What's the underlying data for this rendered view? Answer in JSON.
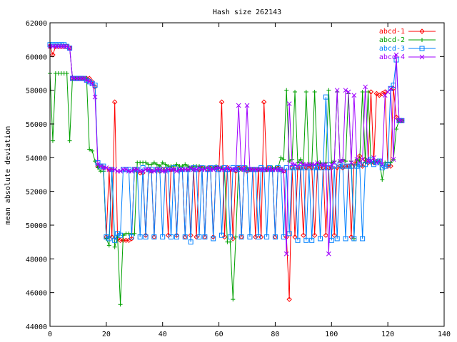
{
  "chart_data": {
    "type": "line",
    "title": "Hash size 262143",
    "xlabel": "",
    "ylabel": "mean absolute deviation",
    "xlim": [
      0,
      140
    ],
    "ylim": [
      44000,
      62000
    ],
    "xticks": [
      0,
      20,
      40,
      60,
      80,
      100,
      120,
      140
    ],
    "yticks": [
      44000,
      46000,
      48000,
      50000,
      52000,
      54000,
      56000,
      58000,
      60000,
      62000
    ],
    "grid": false,
    "legend_position": "top-right",
    "series": [
      {
        "name": "abcd-1",
        "color": "#ff0000",
        "marker": "diamond",
        "x": [
          0,
          1,
          2,
          3,
          4,
          5,
          6,
          7,
          8,
          9,
          10,
          11,
          12,
          13,
          14,
          15,
          16,
          17,
          18,
          19,
          20,
          21,
          22,
          23,
          24,
          25,
          26,
          27,
          28,
          29,
          30,
          31,
          32,
          33,
          34,
          35,
          36,
          37,
          38,
          39,
          40,
          41,
          42,
          43,
          44,
          45,
          46,
          47,
          48,
          49,
          50,
          51,
          52,
          53,
          54,
          55,
          56,
          57,
          58,
          59,
          60,
          61,
          62,
          63,
          64,
          65,
          66,
          67,
          68,
          69,
          70,
          71,
          72,
          73,
          74,
          75,
          76,
          77,
          78,
          79,
          80,
          81,
          82,
          83,
          84,
          85,
          86,
          87,
          88,
          89,
          90,
          91,
          92,
          93,
          94,
          95,
          96,
          97,
          98,
          99,
          100,
          101,
          102,
          103,
          104,
          105,
          106,
          107,
          108,
          109,
          110,
          111,
          112,
          113,
          114,
          115,
          116,
          117,
          118,
          119,
          120,
          121,
          122,
          123,
          124,
          125
        ],
        "y": [
          60600,
          60100,
          60600,
          60600,
          60600,
          60600,
          60600,
          60500,
          58700,
          58700,
          58700,
          58700,
          58700,
          58700,
          58700,
          58500,
          58200,
          53500,
          53500,
          53400,
          49300,
          53300,
          49300,
          57300,
          49200,
          49100,
          49100,
          49100,
          49100,
          49200,
          53300,
          53200,
          53100,
          53100,
          49400,
          53300,
          53200,
          49300,
          53300,
          53200,
          53300,
          53300,
          49400,
          53300,
          53300,
          49400,
          53300,
          53300,
          49300,
          53300,
          49400,
          53300,
          49300,
          53300,
          53400,
          49300,
          53300,
          53400,
          49300,
          53400,
          53300,
          57300,
          49300,
          53400,
          53300,
          49200,
          53200,
          53400,
          49300,
          53400,
          53200,
          53300,
          53300,
          49300,
          53300,
          49300,
          57300,
          53300,
          53400,
          53300,
          49300,
          53400,
          53300,
          53200,
          49300,
          45600,
          53400,
          49300,
          53400,
          53400,
          49400,
          53400,
          53500,
          53400,
          49400,
          53400,
          53400,
          53400,
          49400,
          53400,
          53400,
          49400,
          53400,
          53500,
          53400,
          53500,
          53500,
          49300,
          53600,
          53800,
          54100,
          53500,
          53900,
          53700,
          57900,
          53700,
          57800,
          57700,
          57800,
          57900,
          53500,
          53500,
          58100,
          56400,
          56200,
          56200
        ]
      },
      {
        "name": "abcd-2",
        "color": "#00a000",
        "marker": "plus",
        "x": [
          0,
          1,
          2,
          3,
          4,
          5,
          6,
          7,
          8,
          9,
          10,
          11,
          12,
          13,
          14,
          15,
          16,
          17,
          18,
          19,
          20,
          21,
          22,
          23,
          24,
          25,
          26,
          27,
          28,
          29,
          30,
          31,
          32,
          33,
          34,
          35,
          36,
          37,
          38,
          39,
          40,
          41,
          42,
          43,
          44,
          45,
          46,
          47,
          48,
          49,
          50,
          51,
          52,
          53,
          54,
          55,
          56,
          57,
          58,
          59,
          60,
          61,
          62,
          63,
          64,
          65,
          66,
          67,
          68,
          69,
          70,
          71,
          72,
          73,
          74,
          75,
          76,
          77,
          78,
          79,
          80,
          81,
          82,
          83,
          84,
          85,
          86,
          87,
          88,
          89,
          90,
          91,
          92,
          93,
          94,
          95,
          96,
          97,
          98,
          99,
          100,
          101,
          102,
          103,
          104,
          105,
          106,
          107,
          108,
          109,
          110,
          111,
          112,
          113,
          114,
          115,
          116,
          117,
          118,
          119,
          120,
          121,
          122,
          123,
          124,
          125
        ],
        "y": [
          59000,
          55000,
          59000,
          59000,
          59000,
          59000,
          59000,
          55000,
          58800,
          58700,
          58700,
          58700,
          58700,
          58700,
          54500,
          54400,
          53800,
          53400,
          53200,
          53200,
          49200,
          48800,
          53300,
          48700,
          49300,
          45300,
          49400,
          49500,
          49500,
          49500,
          49500,
          53700,
          53700,
          53700,
          53700,
          53600,
          53600,
          53700,
          53600,
          53500,
          53700,
          53600,
          53500,
          53500,
          53500,
          53600,
          53500,
          53500,
          53600,
          53500,
          53400,
          53500,
          53500,
          53500,
          53400,
          53400,
          53400,
          53400,
          53400,
          53500,
          53400,
          53400,
          53300,
          49000,
          49000,
          45600,
          49300,
          53400,
          53300,
          53300,
          53400,
          53300,
          53300,
          53300,
          53300,
          53300,
          53300,
          53300,
          53300,
          53400,
          53400,
          53400,
          54000,
          53900,
          58000,
          53800,
          53900,
          57900,
          53700,
          53900,
          53600,
          57900,
          53600,
          53600,
          57900,
          53600,
          53700,
          53600,
          53700,
          58000,
          53700,
          53800,
          57900,
          53800,
          53900,
          53800,
          57800,
          53800,
          49200,
          53900,
          53800,
          57900,
          53700,
          57900,
          53700,
          53700,
          53800,
          53800,
          52700,
          53700,
          53700,
          53700,
          53900,
          55700,
          56200,
          56200
        ]
      },
      {
        "name": "abcd-3",
        "color": "#0080ff",
        "marker": "square",
        "x": [
          0,
          1,
          2,
          3,
          4,
          5,
          6,
          7,
          8,
          9,
          10,
          11,
          12,
          13,
          14,
          15,
          16,
          17,
          18,
          19,
          20,
          21,
          22,
          23,
          24,
          25,
          26,
          27,
          28,
          29,
          30,
          31,
          32,
          33,
          34,
          35,
          36,
          37,
          38,
          39,
          40,
          41,
          42,
          43,
          44,
          45,
          46,
          47,
          48,
          49,
          50,
          51,
          52,
          53,
          54,
          55,
          56,
          57,
          58,
          59,
          60,
          61,
          62,
          63,
          64,
          65,
          66,
          67,
          68,
          69,
          70,
          71,
          72,
          73,
          74,
          75,
          76,
          77,
          78,
          79,
          80,
          81,
          82,
          83,
          84,
          85,
          86,
          87,
          88,
          89,
          90,
          91,
          92,
          93,
          94,
          95,
          96,
          97,
          98,
          99,
          100,
          101,
          102,
          103,
          104,
          105,
          106,
          107,
          108,
          109,
          110,
          111,
          112,
          113,
          114,
          115,
          116,
          117,
          118,
          119,
          120,
          121,
          122,
          123,
          124,
          125
        ],
        "y": [
          60700,
          60700,
          60700,
          60700,
          60700,
          60700,
          60600,
          60500,
          58700,
          58700,
          58700,
          58700,
          58700,
          58600,
          58500,
          58400,
          58300,
          53700,
          53500,
          53500,
          49300,
          49200,
          53300,
          49100,
          49500,
          49400,
          53300,
          53300,
          53300,
          49300,
          53300,
          53300,
          49300,
          53400,
          49300,
          53300,
          53300,
          49300,
          53300,
          53300,
          49300,
          53300,
          53300,
          49300,
          53400,
          49300,
          53300,
          53300,
          49300,
          53300,
          49000,
          53400,
          53300,
          49300,
          53400,
          49300,
          53300,
          53400,
          49200,
          53400,
          53300,
          49400,
          53400,
          53300,
          49300,
          53400,
          53300,
          53400,
          49300,
          53400,
          53300,
          49300,
          53300,
          53300,
          49300,
          53400,
          53300,
          49300,
          53400,
          53300,
          49300,
          53400,
          53300,
          49300,
          53400,
          49500,
          53400,
          53400,
          49100,
          53400,
          53400,
          49100,
          53400,
          49100,
          53400,
          53400,
          49200,
          53400,
          57600,
          53400,
          49100,
          53500,
          49200,
          53600,
          53500,
          49200,
          53500,
          53500,
          49200,
          53500,
          53600,
          49200,
          53600,
          53800,
          53900,
          53600,
          53700,
          53800,
          53400,
          53500,
          53600,
          58100,
          58300,
          59800,
          56200,
          56200
        ]
      },
      {
        "name": "abcd-4",
        "color": "#a000ff",
        "marker": "x",
        "x": [
          0,
          1,
          2,
          3,
          4,
          5,
          6,
          7,
          8,
          9,
          10,
          11,
          12,
          13,
          14,
          15,
          16,
          17,
          18,
          19,
          20,
          21,
          22,
          23,
          24,
          25,
          26,
          27,
          28,
          29,
          30,
          31,
          32,
          33,
          34,
          35,
          36,
          37,
          38,
          39,
          40,
          41,
          42,
          43,
          44,
          45,
          46,
          47,
          48,
          49,
          50,
          51,
          52,
          53,
          54,
          55,
          56,
          57,
          58,
          59,
          60,
          61,
          62,
          63,
          64,
          65,
          66,
          67,
          68,
          69,
          70,
          71,
          72,
          73,
          74,
          75,
          76,
          77,
          78,
          79,
          80,
          81,
          82,
          83,
          84,
          85,
          86,
          87,
          88,
          89,
          90,
          91,
          92,
          93,
          94,
          95,
          96,
          97,
          98,
          99,
          100,
          101,
          102,
          103,
          104,
          105,
          106,
          107,
          108,
          109,
          110,
          111,
          112,
          113,
          114,
          115,
          116,
          117,
          118,
          119,
          120,
          121,
          122,
          123,
          124,
          125
        ],
        "y": [
          60600,
          60600,
          60600,
          60600,
          60600,
          60600,
          60600,
          60500,
          58700,
          58700,
          58700,
          58700,
          58700,
          58600,
          58500,
          58400,
          57600,
          53600,
          53500,
          53400,
          53400,
          53300,
          53300,
          53300,
          53200,
          53200,
          53300,
          53300,
          53200,
          53200,
          53300,
          53300,
          53200,
          53200,
          53300,
          53300,
          53200,
          53200,
          53300,
          53300,
          53200,
          53200,
          53300,
          53300,
          53300,
          53200,
          53300,
          53300,
          53300,
          53300,
          53400,
          53300,
          53300,
          53400,
          53300,
          53300,
          53400,
          53300,
          53300,
          53400,
          53400,
          53300,
          53300,
          53400,
          53300,
          53300,
          53300,
          57100,
          53300,
          53300,
          57100,
          53300,
          53300,
          53300,
          53300,
          53300,
          53300,
          53300,
          53300,
          53300,
          53300,
          53300,
          53300,
          53200,
          48300,
          57200,
          53600,
          53600,
          53500,
          53700,
          53600,
          53600,
          53600,
          53600,
          53600,
          53700,
          53600,
          53600,
          53600,
          48300,
          53600,
          53700,
          58000,
          53800,
          53800,
          58000,
          57900,
          53700,
          57700,
          53900,
          53700,
          53900,
          58200,
          53800,
          53800,
          54000,
          53700,
          53800,
          53600,
          57700,
          57900,
          58100,
          53900,
          60100,
          56200,
          56200
        ]
      }
    ]
  }
}
